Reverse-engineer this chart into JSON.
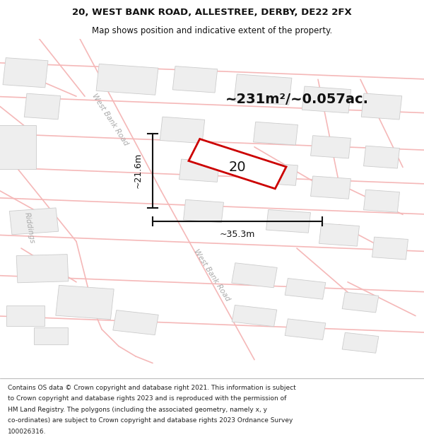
{
  "title": "20, WEST BANK ROAD, ALLESTREE, DERBY, DE22 2FX",
  "subtitle": "Map shows position and indicative extent of the property.",
  "area_text": "~231m²/~0.057ac.",
  "dim_width": "~35.3m",
  "dim_height": "~21.6m",
  "plot_label": "20",
  "footer_lines": [
    "Contains OS data © Crown copyright and database right 2021. This information is subject",
    "to Crown copyright and database rights 2023 and is reproduced with the permission of",
    "HM Land Registry. The polygons (including the associated geometry, namely x, y",
    "co-ordinates) are subject to Crown copyright and database rights 2023 Ordnance Survey",
    "100026316."
  ],
  "map_bg": "#ffffff",
  "road_color": "#f5b8b8",
  "building_fill": "#eeeeee",
  "building_stroke": "#cccccc",
  "highlight_fill": "#ffffff",
  "highlight_stroke": "#cc0000",
  "road_text_color": "#aaaaaa",
  "measure_color": "#111111",
  "title_color": "#111111",
  "footer_color": "#222222",
  "title_fontsize": 9.5,
  "subtitle_fontsize": 8.5,
  "area_fontsize": 14,
  "dim_fontsize": 9,
  "road_lw": 1.2,
  "building_lw": 0.6,
  "highlight_lw": 2.0,
  "dim_lw": 1.5,
  "footer_fontsize": 6.5
}
